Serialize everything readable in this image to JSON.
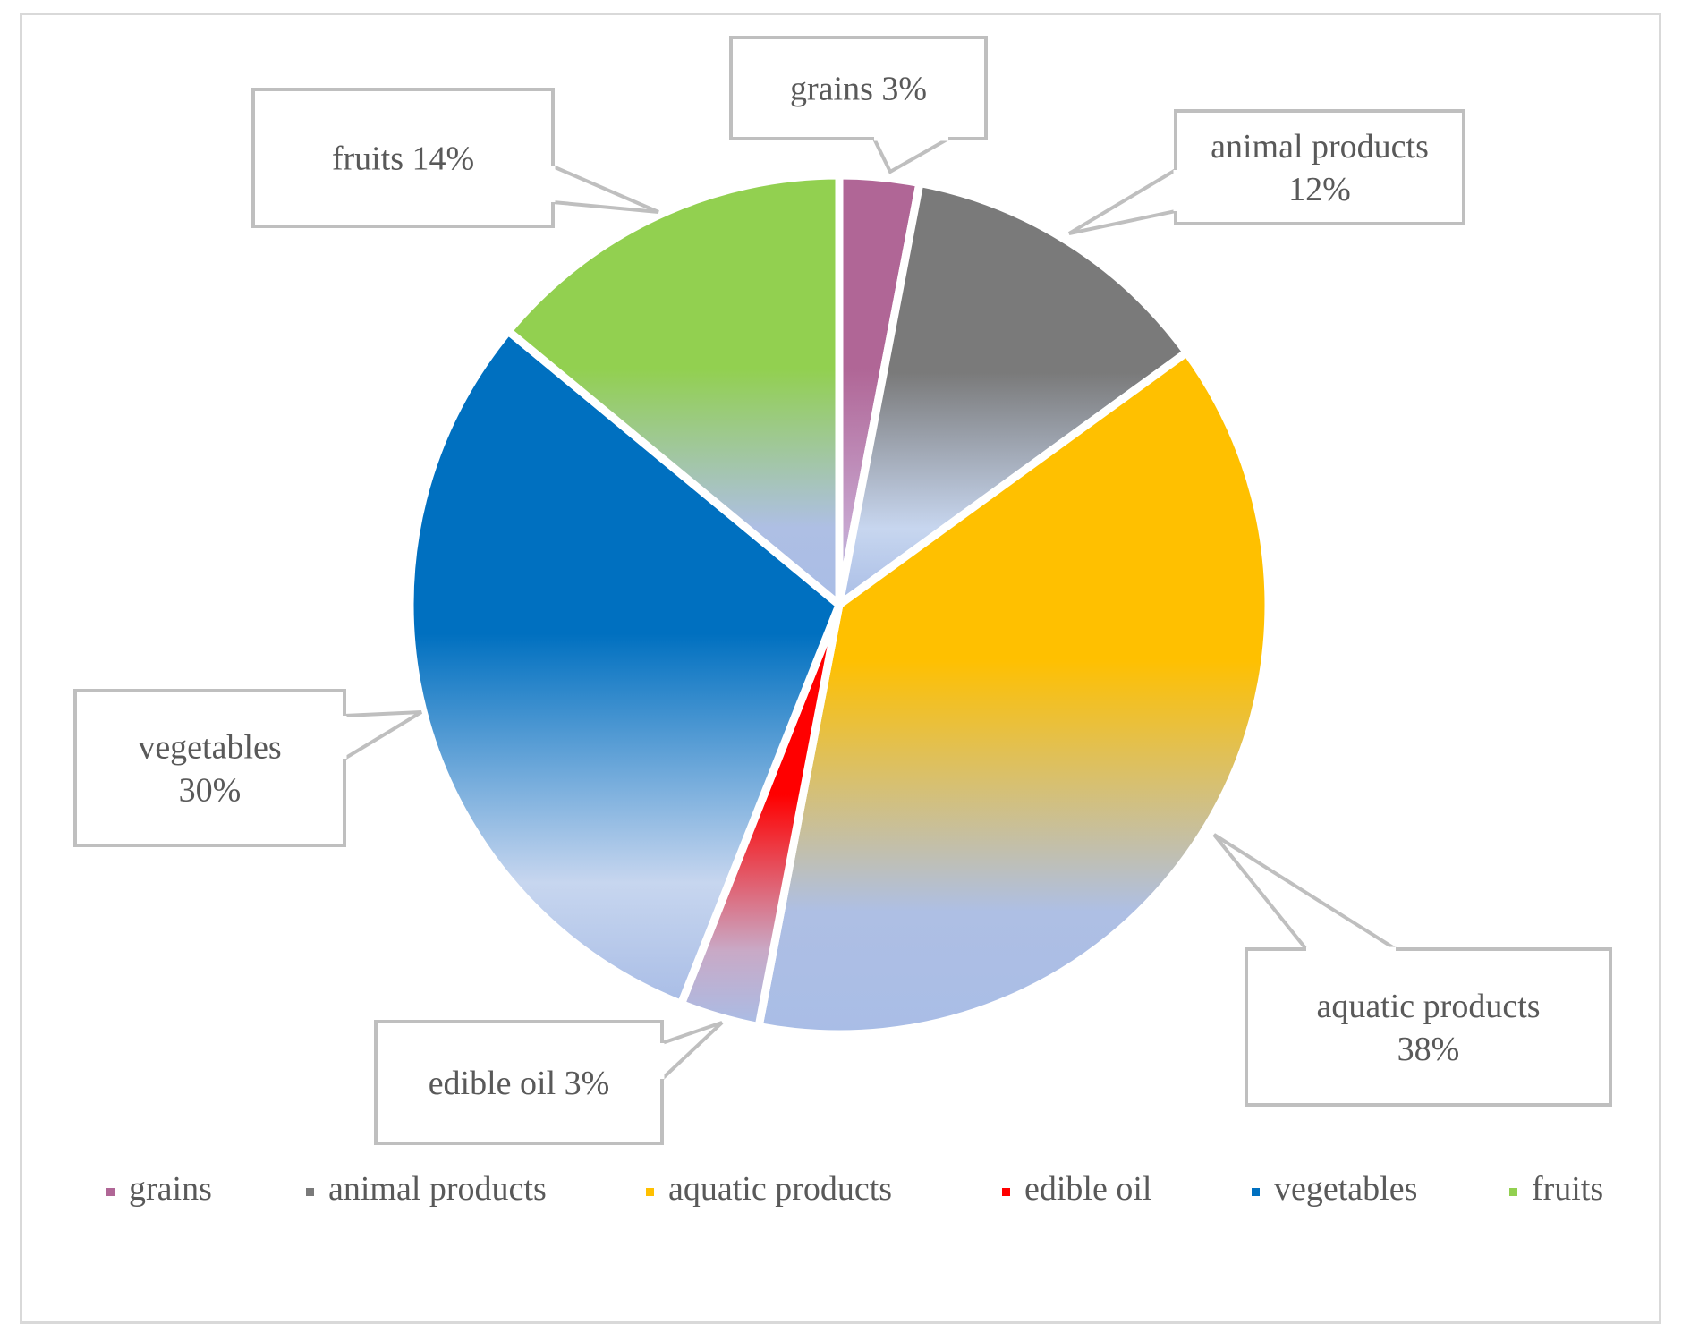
{
  "chart_data": {
    "type": "pie",
    "title": "",
    "slices": [
      {
        "label": "grains",
        "value": 3,
        "data_label": "grains 3%",
        "color_top": "#b06696",
        "color_bottom": "#c7a5cf"
      },
      {
        "label": "animal products",
        "value": 12,
        "data_label": "animal products 12%",
        "color_top": "#7a7a7a",
        "color_bottom": "#c7d6ef"
      },
      {
        "label": "aquatic products",
        "value": 38,
        "data_label": "aquatic products 38%",
        "color_top": "#ffc000",
        "color_bottom": "#aebfe4"
      },
      {
        "label": "edible oil",
        "value": 3,
        "data_label": "edible oil 3%",
        "color_top": "#ff0000",
        "color_bottom": "#c9a9c6"
      },
      {
        "label": "vegetables",
        "value": 30,
        "data_label": "vegetables 30%",
        "color_top": "#0070c0",
        "color_bottom": "#c7d6ef"
      },
      {
        "label": "fruits",
        "value": 14,
        "data_label": "fruits 14%",
        "color_top": "#92d050",
        "color_bottom": "#aebfe4"
      }
    ],
    "legend_position": "bottom"
  }
}
